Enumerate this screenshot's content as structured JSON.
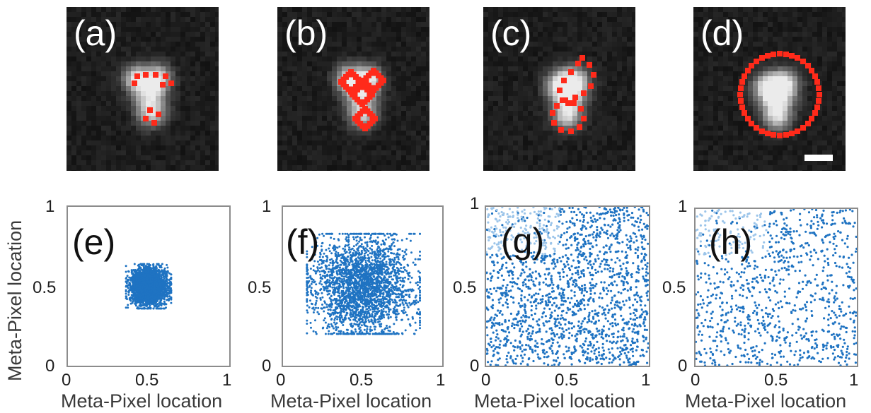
{
  "figure": {
    "micrographs": [
      {
        "label": "(a)",
        "overlay": "four-points",
        "scale_bar": false
      },
      {
        "label": "(b)",
        "overlay": "four-diamonds",
        "scale_bar": false
      },
      {
        "label": "(c)",
        "overlay": "two-blobs",
        "scale_bar": false
      },
      {
        "label": "(d)",
        "overlay": "circle",
        "scale_bar": true
      }
    ],
    "axis_label": "Meta-Pixel location",
    "colors": {
      "points": "#1f73c2",
      "points_light": "#9cc5ea",
      "overlay": "#ff2a1a"
    }
  },
  "chart_data": [
    {
      "type": "scatter",
      "label": "(e)",
      "xlabel": "Meta-Pixel location",
      "ylabel": "Meta-Pixel location",
      "xlim": [
        0,
        1
      ],
      "ylim": [
        0,
        1
      ],
      "x_ticks": [
        "0",
        "0.5",
        "1"
      ],
      "y_ticks": [
        "0",
        "0.5",
        "1"
      ],
      "distribution": {
        "center": [
          0.5,
          0.5
        ],
        "spread": 0.055,
        "n": 3000
      }
    },
    {
      "type": "scatter",
      "label": "(f)",
      "xlabel": "Meta-Pixel location",
      "ylabel": "",
      "xlim": [
        0,
        1
      ],
      "ylim": [
        0,
        1
      ],
      "x_ticks": [
        "0",
        "0.5",
        "1"
      ],
      "y_ticks": [
        "0",
        "0.5",
        "1"
      ],
      "distribution": {
        "center": [
          0.5,
          0.5
        ],
        "spread": 0.16,
        "n": 2600
      }
    },
    {
      "type": "scatter",
      "label": "(g)",
      "xlabel": "Meta-Pixel location",
      "ylabel": "",
      "xlim": [
        0,
        1
      ],
      "ylim": [
        0,
        1
      ],
      "x_ticks": [
        "0",
        "0.5",
        "1"
      ],
      "y_ticks": [
        "0",
        "0.5",
        "1"
      ],
      "distribution": {
        "center": [
          0.5,
          0.5
        ],
        "spread": "uniform",
        "n": 1800
      }
    },
    {
      "type": "scatter",
      "label": "(h)",
      "xlabel": "Meta-Pixel location",
      "ylabel": "",
      "xlim": [
        0,
        1
      ],
      "ylim": [
        0,
        1
      ],
      "x_ticks": [
        "0",
        "0.5",
        "1"
      ],
      "y_ticks": [
        "0",
        "0.5",
        "1"
      ],
      "distribution": {
        "center": [
          0.5,
          0.5
        ],
        "spread": "uniform",
        "n": 1000
      }
    }
  ]
}
